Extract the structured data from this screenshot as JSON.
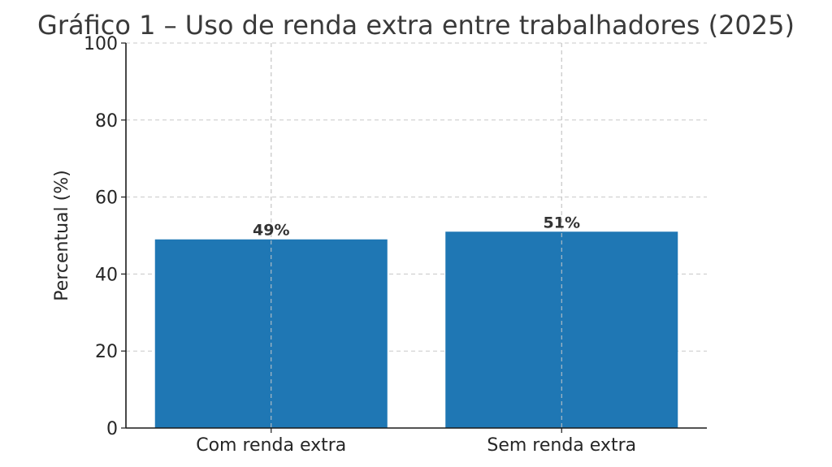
{
  "chart_data": {
    "type": "bar",
    "title": "Gráfico 1 – Uso de renda extra entre trabalhadores (2025)",
    "xlabel": "",
    "ylabel": "Percentual (%)",
    "categories": [
      "Com renda extra",
      "Sem renda extra"
    ],
    "values": [
      49,
      51
    ],
    "data_labels": [
      "49%",
      "51%"
    ],
    "ylim": [
      0,
      100
    ],
    "yticks": [
      0,
      20,
      40,
      60,
      80,
      100
    ],
    "grid": true,
    "bar_color": "#1f77b4"
  }
}
